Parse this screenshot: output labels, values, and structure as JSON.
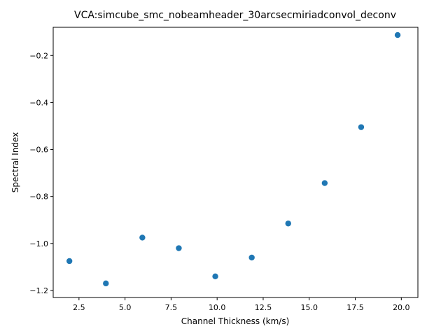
{
  "chart_data": {
    "type": "scatter",
    "title": "VCA:simcube_smc_nobeamheader_30arcsecmiriadconvol_deconv",
    "xlabel": "Channel Thickness (km/s)",
    "ylabel": "Spectral Index",
    "xlim": [
      1.1,
      20.9
    ],
    "ylim": [
      -1.23,
      -0.08
    ],
    "xticks": [
      2.5,
      5.0,
      7.5,
      10.0,
      12.5,
      15.0,
      17.5,
      20.0
    ],
    "xtick_labels": [
      "2.5",
      "5.0",
      "7.5",
      "10.0",
      "12.5",
      "15.0",
      "17.5",
      "20.0"
    ],
    "yticks": [
      -1.2,
      -1.0,
      -0.8,
      -0.6,
      -0.4,
      -0.2
    ],
    "ytick_labels": [
      "−1.2",
      "−1.0",
      "−0.8",
      "−0.6",
      "−0.4",
      "−0.2"
    ],
    "grid": false,
    "marker_color": "#1f77b4",
    "points": [
      {
        "x": 1.98,
        "y": -1.075
      },
      {
        "x": 3.96,
        "y": -1.17
      },
      {
        "x": 5.94,
        "y": -0.975
      },
      {
        "x": 7.92,
        "y": -1.02
      },
      {
        "x": 9.9,
        "y": -1.14
      },
      {
        "x": 11.88,
        "y": -1.06
      },
      {
        "x": 13.86,
        "y": -0.915
      },
      {
        "x": 15.84,
        "y": -0.743
      },
      {
        "x": 17.82,
        "y": -0.505
      },
      {
        "x": 19.8,
        "y": -0.113
      }
    ]
  }
}
